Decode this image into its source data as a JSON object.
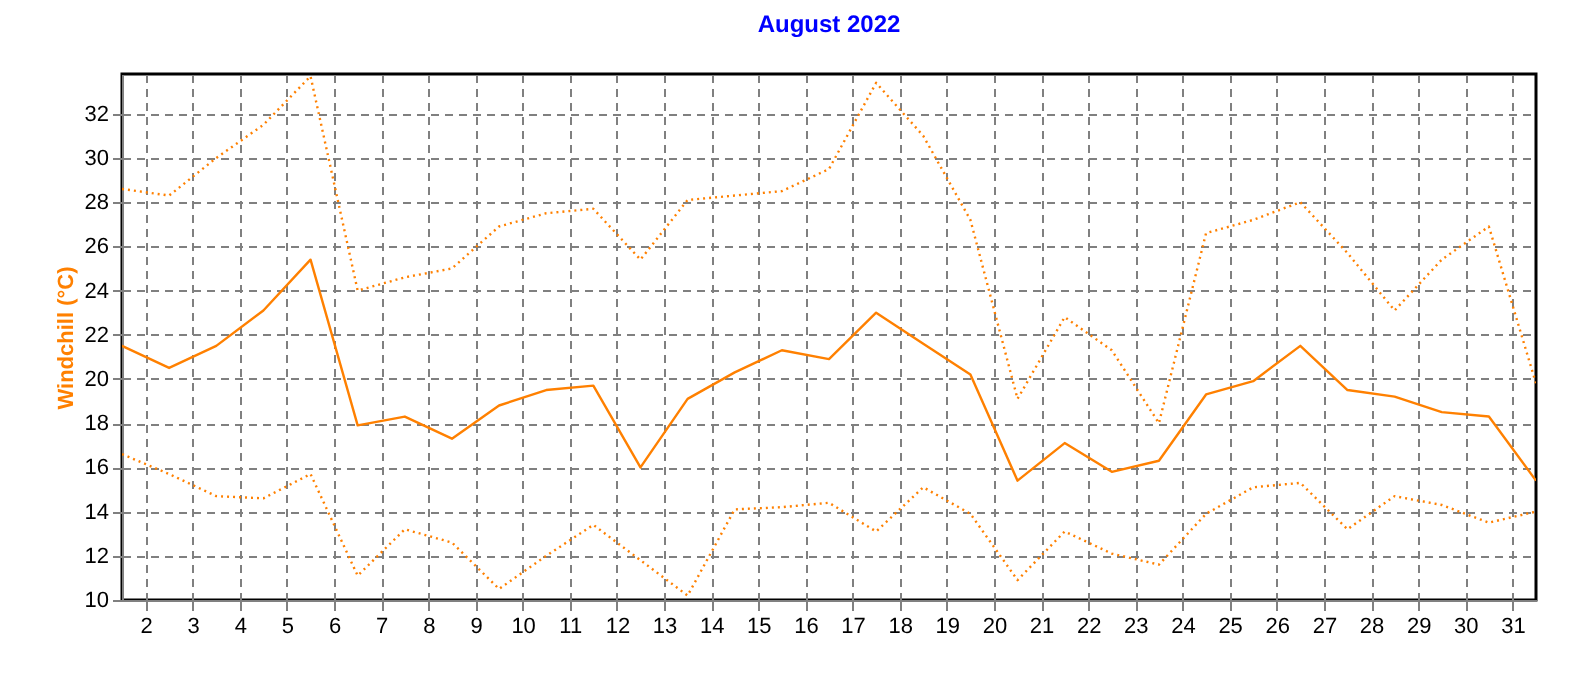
{
  "chart_data": {
    "type": "line",
    "title": "August 2022",
    "ylabel": "Windchill (°C)",
    "x": [
      1.5,
      2.5,
      3.5,
      4.5,
      5.5,
      6.5,
      7.5,
      8.5,
      9.5,
      10.5,
      11.5,
      12.5,
      13.5,
      14.5,
      15.5,
      16.5,
      17.5,
      18.5,
      19.5,
      20.5,
      21.5,
      22.5,
      23.5,
      24.5,
      25.5,
      26.5,
      27.5,
      28.5,
      29.5,
      30.5,
      31.5
    ],
    "series": [
      {
        "color": "#ff8000",
        "line_style": "dotted",
        "values": [
          28.6,
          28.3,
          30.0,
          31.5,
          33.7,
          24.0,
          24.6,
          25.0,
          26.9,
          27.5,
          27.7,
          25.4,
          28.1,
          28.3,
          28.5,
          29.5,
          33.4,
          31.0,
          27.2,
          19.1,
          22.8,
          21.3,
          18.0,
          26.6,
          27.2,
          28.0,
          25.7,
          23.1,
          25.4,
          26.9,
          19.8
        ]
      },
      {
        "color": "#ff8000",
        "line_style": "solid",
        "values": [
          21.5,
          20.5,
          21.5,
          23.1,
          25.4,
          17.9,
          18.3,
          17.3,
          18.8,
          19.5,
          19.7,
          16.0,
          19.1,
          20.3,
          21.3,
          20.9,
          23.0,
          21.6,
          20.2,
          15.4,
          17.1,
          15.8,
          16.3,
          19.3,
          19.9,
          21.5,
          19.5,
          19.2,
          18.5,
          18.3,
          15.4
        ]
      },
      {
        "color": "#ff8000",
        "line_style": "dotted",
        "values": [
          16.6,
          15.7,
          14.7,
          14.6,
          15.7,
          11.1,
          13.2,
          12.6,
          10.5,
          12.0,
          13.4,
          11.8,
          10.2,
          14.1,
          14.2,
          14.4,
          13.1,
          15.1,
          13.9,
          10.9,
          13.1,
          12.1,
          11.6,
          13.9,
          15.1,
          15.3,
          13.2,
          14.7,
          14.3,
          13.5,
          14.0
        ]
      }
    ],
    "xlim": [
      1.5,
      31.5
    ],
    "xticks": [
      2,
      3,
      4,
      5,
      6,
      7,
      8,
      9,
      10,
      11,
      12,
      13,
      14,
      15,
      16,
      17,
      18,
      19,
      20,
      21,
      22,
      23,
      24,
      25,
      26,
      27,
      28,
      29,
      30,
      31
    ],
    "ylim": [
      10,
      33.8
    ],
    "yticks": [
      10,
      12,
      14,
      16,
      18,
      20,
      22,
      24,
      26,
      28,
      30,
      32
    ],
    "grid": true
  }
}
